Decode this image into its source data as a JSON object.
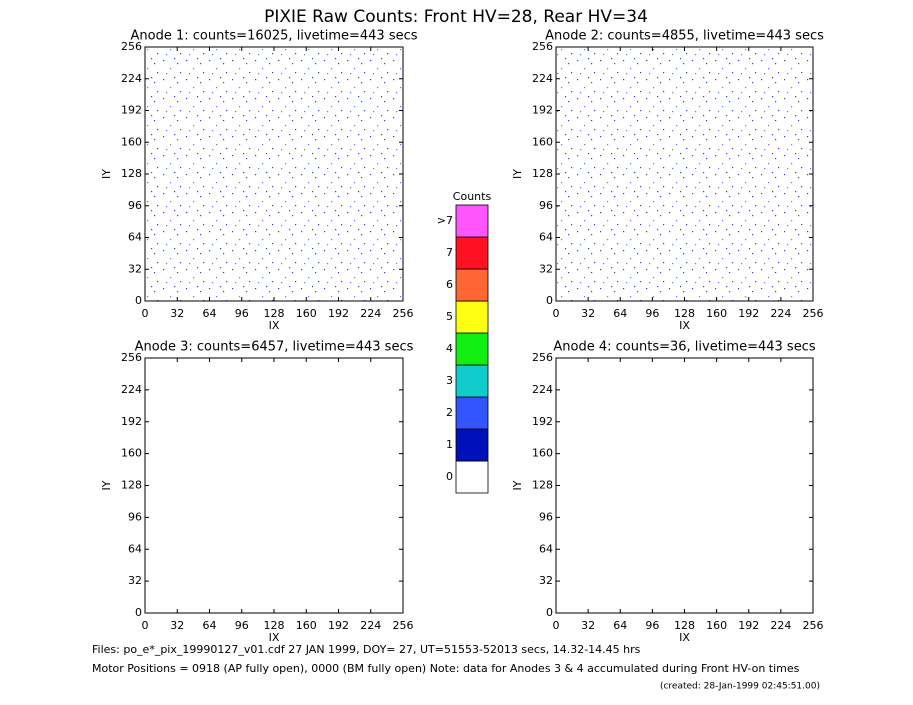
{
  "title": "PIXIE Raw Counts:  Front HV=28, Rear HV=34",
  "panels": [
    {
      "title": "Anode 1: counts=16025, livetime=443 secs",
      "xlabel": "IX",
      "ylabel": "IY",
      "xlim": [
        0,
        256
      ],
      "ylim": [
        0,
        256
      ],
      "xticks": [
        0,
        32,
        64,
        96,
        128,
        160,
        192,
        224,
        256
      ],
      "yticks": [
        0,
        32,
        64,
        96,
        128,
        160,
        192,
        224,
        256
      ]
    },
    {
      "title": "Anode 2: counts=4855, livetime=443 secs",
      "xlabel": "IX",
      "ylabel": "IY",
      "xlim": [
        0,
        256
      ],
      "ylim": [
        0,
        256
      ],
      "xticks": [
        0,
        32,
        64,
        96,
        128,
        160,
        192,
        224,
        256
      ],
      "yticks": [
        0,
        32,
        64,
        96,
        128,
        160,
        192,
        224,
        256
      ]
    },
    {
      "title": "Anode 3: counts=6457, livetime=443 secs",
      "xlabel": "IX",
      "ylabel": "IY",
      "xlim": [
        0,
        256
      ],
      "ylim": [
        0,
        256
      ],
      "xticks": [
        0,
        32,
        64,
        96,
        128,
        160,
        192,
        224,
        256
      ],
      "yticks": [
        0,
        32,
        64,
        96,
        128,
        160,
        192,
        224,
        256
      ]
    },
    {
      "title": "Anode 4: counts=36, livetime=443 secs",
      "xlabel": "IX",
      "ylabel": "IY",
      "xlim": [
        0,
        256
      ],
      "ylim": [
        0,
        256
      ],
      "xticks": [
        0,
        32,
        64,
        96,
        128,
        160,
        192,
        224,
        256
      ],
      "yticks": [
        0,
        32,
        64,
        96,
        128,
        160,
        192,
        224,
        256
      ]
    }
  ],
  "colorbar": {
    "title": "Counts",
    "levels": [
      {
        "label": 0,
        "color": "#ffffff"
      },
      {
        "label": 1,
        "color": "#0011bb"
      },
      {
        "label": 2,
        "color": "#3355ff"
      },
      {
        "label": 3,
        "color": "#11cccc"
      },
      {
        "label": 4,
        "color": "#11ee11"
      },
      {
        "label": 5,
        "color": "#ffff11"
      },
      {
        "label": 6,
        "color": "#ff6633"
      },
      {
        "label": 7,
        "color": "#ff1122"
      },
      {
        "label": ">7",
        "color": "#ff55ff"
      }
    ]
  },
  "footer": {
    "files": "Files: po_e*_pix_19990127_v01.cdf    27 JAN 1999, DOY= 27, UT=51553-52013 secs, 14.32-14.45 hrs",
    "motor": "Motor Positions = 0918 (AP fully open), 0000 (BM fully open)    Note: data for Anodes 3 & 4 accumulated during Front HV-on times",
    "created": "(created: 28-Jan-1999 02:45:51.00)"
  }
}
